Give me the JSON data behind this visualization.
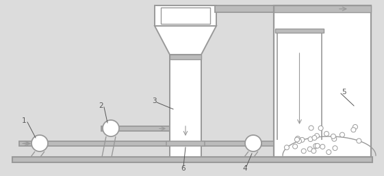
{
  "bg_color": "#dcdcdc",
  "line_color": "#999999",
  "fill_gray": "#bbbbbb",
  "white": "#ffffff",
  "fig_w": 5.61,
  "fig_h": 2.58,
  "dpi": 100,
  "label_color": "#555555",
  "label_fs": 7.5
}
